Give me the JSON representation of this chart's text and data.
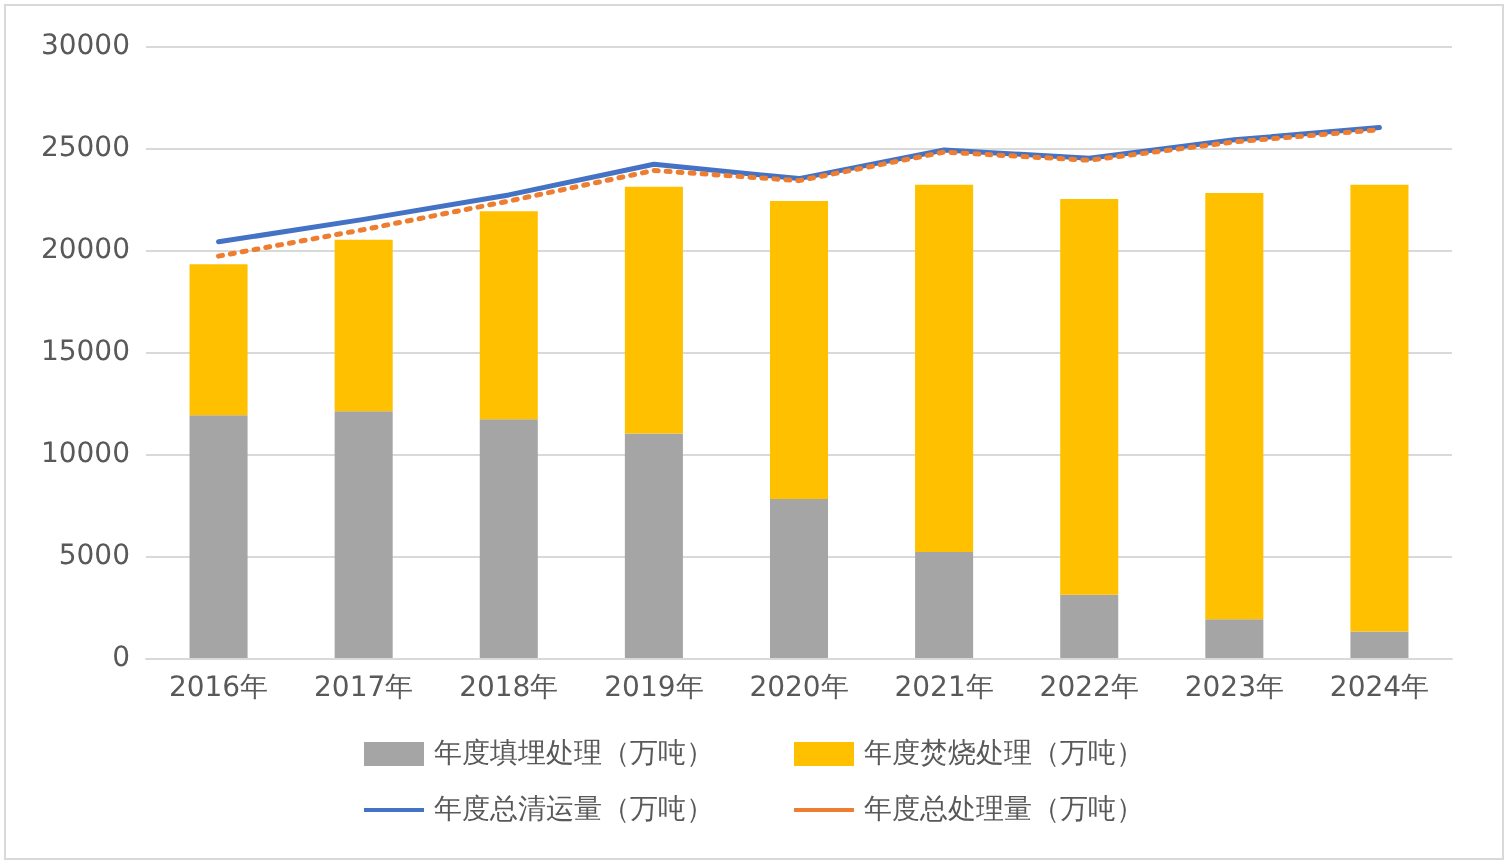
{
  "chart_data": {
    "type": "bar",
    "stacked": true,
    "categories": [
      "2016年",
      "2017年",
      "2018年",
      "2019年",
      "2020年",
      "2021年",
      "2022年",
      "2023年",
      "2024年"
    ],
    "series": [
      {
        "name": "年度填埋处理（万吨）",
        "color": "#a5a5a5",
        "values": [
          11900,
          12100,
          11700,
          11000,
          7800,
          5200,
          3100,
          1900,
          1300
        ]
      },
      {
        "name": "年度焚烧处理（万吨）",
        "color": "#ffc000",
        "values": [
          7400,
          8400,
          10200,
          12100,
          14600,
          18000,
          19400,
          20900,
          21900
        ]
      },
      {
        "name": "年度总清运量（万吨）",
        "color": "#4472c4",
        "type": "line",
        "line_style": "solid",
        "values": [
          20400,
          21500,
          22700,
          24200,
          23500,
          24900,
          24500,
          25400,
          26000
        ]
      },
      {
        "name": "年度总处理量（万吨）",
        "color": "#ed7d31",
        "type": "line",
        "line_style": "dotted",
        "values": [
          19700,
          21000,
          22400,
          23900,
          23400,
          24800,
          24400,
          25300,
          25900
        ]
      }
    ],
    "ylim": [
      0,
      30000
    ],
    "yticks": [
      0,
      5000,
      10000,
      15000,
      20000,
      25000,
      30000
    ],
    "grid": "y",
    "legend": "bottom",
    "marker": "none"
  }
}
